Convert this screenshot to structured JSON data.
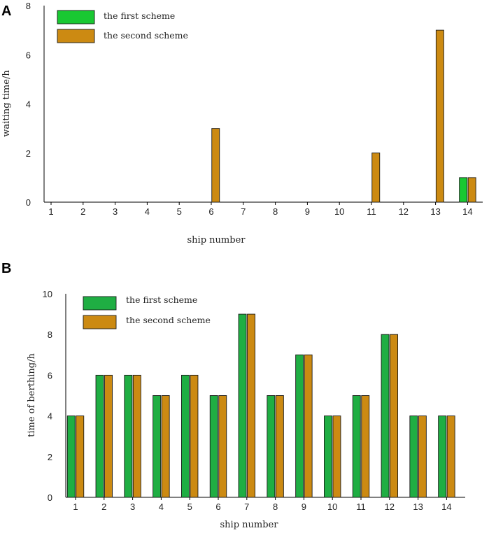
{
  "colors": {
    "first": "#1fae43",
    "second": "#cc8a12",
    "panel_a_first": "#19c832"
  },
  "chart_data": [
    {
      "panel": "A",
      "type": "bar",
      "xlabel": "ship number",
      "ylabel": "waiting time/h",
      "ylim": [
        0,
        8
      ],
      "yticks": [
        0,
        2,
        4,
        6,
        8
      ],
      "categories": [
        "1",
        "2",
        "3",
        "4",
        "5",
        "6",
        "7",
        "8",
        "9",
        "10",
        "11",
        "12",
        "13",
        "14"
      ],
      "series": [
        {
          "name": "the first scheme",
          "values": [
            0,
            0,
            0,
            0,
            0,
            0,
            0,
            0,
            0,
            0,
            0,
            0,
            0,
            1
          ]
        },
        {
          "name": "the second scheme",
          "values": [
            0,
            0,
            0,
            0,
            0,
            3,
            0,
            0,
            0,
            0,
            2,
            0,
            7,
            1
          ]
        }
      ],
      "legend": "top-left"
    },
    {
      "panel": "B",
      "type": "bar",
      "xlabel": "ship number",
      "ylabel": "time of berthing/h",
      "ylim": [
        0,
        10
      ],
      "yticks": [
        0,
        2,
        4,
        6,
        8,
        10
      ],
      "categories": [
        "1",
        "2",
        "3",
        "4",
        "5",
        "6",
        "7",
        "8",
        "9",
        "10",
        "11",
        "12",
        "13",
        "14"
      ],
      "series": [
        {
          "name": "the first scheme",
          "values": [
            4,
            6,
            6,
            5,
            6,
            5,
            9,
            5,
            7,
            4,
            5,
            8,
            4,
            4
          ]
        },
        {
          "name": "the second scheme",
          "values": [
            4,
            6,
            6,
            5,
            6,
            5,
            9,
            5,
            7,
            4,
            5,
            8,
            4,
            4
          ]
        }
      ],
      "legend": "top-left"
    }
  ]
}
